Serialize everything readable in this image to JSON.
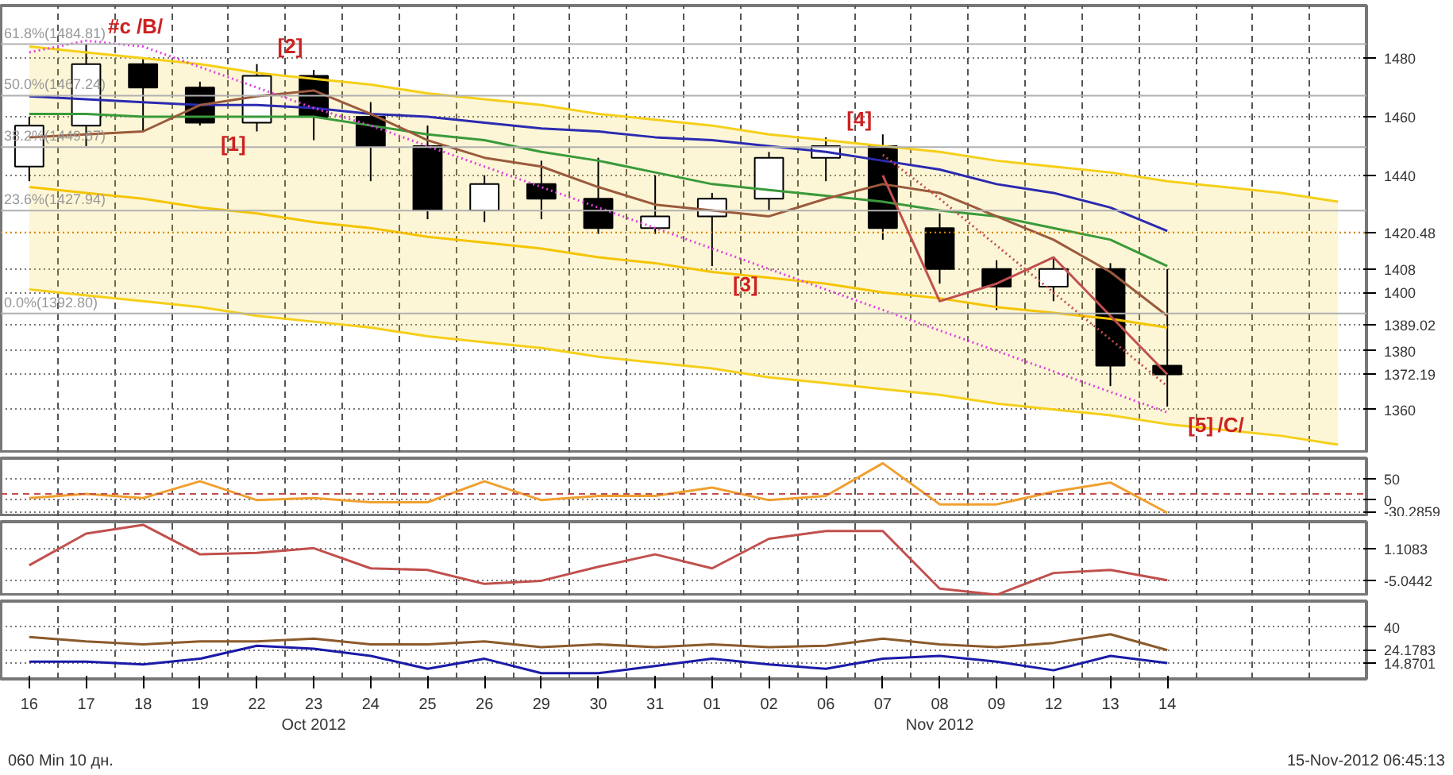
{
  "chart_data": [
    {
      "type": "candlestick",
      "color": "#000000",
      "grid": true,
      "tick_labels": "y",
      "ylim": [
        1345,
        1498
      ],
      "yticks": [
        1360,
        1372.19,
        1380,
        1389.02,
        1400,
        1408,
        1420.48,
        1440,
        1460,
        1480
      ],
      "categories": [
        "16",
        "17",
        "18",
        "19",
        "22",
        "23",
        "24",
        "25",
        "26",
        "29",
        "30",
        "31",
        "01",
        "02",
        "06",
        "07",
        "08",
        "09",
        "12",
        "13",
        "14",
        null,
        null,
        null
      ],
      "ohlc": [
        [
          1443,
          1460,
          1438,
          1457
        ],
        [
          1457,
          1484.81,
          1450,
          1478
        ],
        [
          1478,
          1480,
          1455,
          1470
        ],
        [
          1470,
          1472,
          1457,
          1458
        ],
        [
          1458,
          1478,
          1455,
          1474
        ],
        [
          1474,
          1476,
          1452,
          1460
        ],
        [
          1460,
          1465,
          1438,
          1450
        ],
        [
          1450,
          1457,
          1425,
          1428
        ],
        [
          1428,
          1440,
          1424,
          1437
        ],
        [
          1437,
          1445,
          1425,
          1432
        ],
        [
          1432,
          1446,
          1420,
          1422
        ],
        [
          1422,
          1440,
          1420,
          1426
        ],
        [
          1426,
          1434,
          1409,
          1432
        ],
        [
          1432,
          1448,
          1428,
          1446
        ],
        [
          1446,
          1453,
          1438,
          1450
        ],
        [
          1450,
          1454,
          1418,
          1422
        ],
        [
          1422,
          1427,
          1403,
          1408
        ],
        [
          1408,
          1411,
          1394,
          1402
        ],
        [
          1402,
          1412,
          1397,
          1408
        ],
        [
          1408,
          1410,
          1368,
          1375
        ],
        [
          1375,
          1408,
          1361,
          1372
        ],
        null,
        null,
        null
      ],
      "series": [
        {
          "type": "line",
          "color": "#f5cf1a",
          "values": [
            1484,
            1482,
            1480,
            1478,
            1475,
            1473,
            1471,
            1468,
            1466,
            1464,
            1461,
            1459,
            1457,
            1454,
            1452,
            1450,
            1448,
            1445,
            1443,
            1441,
            1438,
            1436,
            1434,
            1431
          ],
          "lower": [
            1401,
            1399,
            1397,
            1395,
            1392,
            1390,
            1388,
            1385,
            1383,
            1381,
            1378,
            1376,
            1374,
            1371,
            1369,
            1367,
            1365,
            1362,
            1360,
            1358,
            1355,
            1353,
            1351,
            1348
          ],
          "upper": [
            1484,
            1482,
            1480,
            1478,
            1475,
            1473,
            1471,
            1468,
            1466,
            1464,
            1461,
            1459,
            1457,
            1454,
            1452,
            1450,
            1448,
            1445,
            1443,
            1441,
            1438,
            1436,
            1434,
            1431
          ]
        },
        {
          "type": "line",
          "color": "#f5cf1a",
          "values": [
            1401,
            1399,
            1397,
            1395,
            1392,
            1390,
            1388,
            1385,
            1383,
            1381,
            1378,
            1376,
            1374,
            1371,
            1369,
            1367,
            1365,
            1362,
            1360,
            1358,
            1355,
            1353,
            1351,
            1348
          ]
        },
        {
          "type": "line",
          "color": "#f5c400",
          "values": [
            1436,
            1434,
            1432,
            1429,
            1427,
            1424,
            1422,
            1419,
            1417,
            1415,
            1412,
            1410,
            1407,
            1405,
            1403,
            1400,
            1398,
            1395,
            1393,
            1391,
            1388,
            null,
            null,
            null
          ]
        },
        {
          "type": "line",
          "color": "#2b2bb0",
          "values": [
            1467,
            1466,
            1465,
            1464,
            1464,
            1463,
            1461,
            1460,
            1458,
            1456,
            1455,
            1453,
            1452,
            1450,
            1448,
            1445,
            1442,
            1437,
            1434,
            1429,
            1421,
            null,
            null,
            null
          ]
        },
        {
          "type": "line",
          "color": "#3a9a3a",
          "values": [
            1461,
            1461,
            1460,
            1460,
            1460,
            1460,
            1457,
            1454,
            1452,
            1448,
            1445,
            1441,
            1437,
            1435,
            1433,
            1431,
            1428,
            1426,
            1422,
            1418,
            1409,
            null,
            null,
            null
          ]
        },
        {
          "type": "line",
          "color": "#9b5a3c",
          "values": [
            1453,
            1454,
            1455,
            1464,
            1467,
            1469,
            1461,
            1452,
            1446,
            1443,
            1436,
            1430,
            1428,
            1426,
            1432,
            1437,
            1434,
            1426,
            1418,
            1407,
            1392,
            null,
            null,
            null
          ]
        },
        {
          "type": "line",
          "color": "#e040e0",
          "line_style": "dotted",
          "values": [
            1482,
            1486,
            1484,
            1477,
            1470,
            1463,
            1457,
            1450,
            1443,
            1436,
            1429,
            1422,
            1415,
            1408,
            1401,
            1394,
            1387,
            1380,
            1373,
            1366,
            1359,
            null,
            null,
            null
          ]
        },
        {
          "type": "line",
          "color": "#c0504d",
          "line_style": "dotted",
          "values": [
            null,
            null,
            null,
            null,
            null,
            null,
            null,
            null,
            null,
            null,
            null,
            null,
            null,
            null,
            null,
            1447,
            1432,
            1416,
            1400,
            1384,
            1368,
            null,
            null,
            null
          ]
        },
        {
          "type": "line",
          "color": "#c0504d",
          "values": [
            null,
            null,
            null,
            null,
            null,
            null,
            null,
            null,
            null,
            null,
            null,
            null,
            null,
            null,
            null,
            1440,
            1397,
            1403,
            1412,
            1392,
            1372,
            null,
            null,
            null
          ]
        }
      ],
      "ref_lines": [
        {
          "axis": "y",
          "value": 1484.81,
          "label": "61.8%(1484.81)",
          "color": "#b0b0b0"
        },
        {
          "axis": "y",
          "value": 1467.24,
          "label": "50.0%(1467.24)",
          "color": "#b0b0b0"
        },
        {
          "axis": "y",
          "value": 1449.67,
          "label": "38.2%(1449.67)",
          "color": "#b0b0b0"
        },
        {
          "axis": "y",
          "value": 1427.94,
          "label": "23.6%(1427.94)",
          "color": "#b0b0b0"
        },
        {
          "axis": "y",
          "value": 1392.8,
          "label": "0.0%(1392.80)",
          "color": "#b0b0b0"
        },
        {
          "axis": "y",
          "value": 1420.48,
          "label": null,
          "color": "#e08a00",
          "line_style": "dotted"
        }
      ],
      "annotations": [
        {
          "text": "#c",
          "x": "17",
          "y": 1484.81
        },
        {
          "text": "/B/",
          "x": "17",
          "y": 1484.81
        },
        {
          "text": "[1]",
          "x": "19",
          "y": 1457
        },
        {
          "text": "[2]",
          "x": "22",
          "y": 1478
        },
        {
          "text": "[3]",
          "x": "01",
          "y": 1409
        },
        {
          "text": "[4]",
          "x": "06",
          "y": 1453
        },
        {
          "text": "[5]",
          "x": "14",
          "y": 1361
        },
        {
          "text": "/C/",
          "x": "14",
          "y": 1361
        }
      ]
    },
    {
      "type": "line",
      "grid": true,
      "tick_labels": "y",
      "ylim": [
        -40,
        100
      ],
      "yticks": [
        -30.2859,
        0,
        50
      ],
      "categories": [
        "16",
        "17",
        "18",
        "19",
        "22",
        "23",
        "24",
        "25",
        "26",
        "29",
        "30",
        "31",
        "01",
        "02",
        "06",
        "07",
        "08",
        "09",
        "12",
        "13",
        "14",
        null,
        null,
        null
      ],
      "series": [
        {
          "color": "#f0a030",
          "values": [
            5,
            15,
            5,
            45,
            0,
            5,
            -5,
            -5,
            45,
            0,
            10,
            10,
            30,
            0,
            10,
            88,
            -10,
            -10,
            20,
            42,
            -30,
            null,
            null,
            null
          ]
        }
      ],
      "ref_lines": [
        {
          "axis": "y",
          "value": 15,
          "label": null,
          "color": "#c0504d",
          "line_style": "dashed"
        }
      ]
    },
    {
      "type": "line",
      "grid": true,
      "tick_labels": "y",
      "ylim": [
        -8.1,
        6.3
      ],
      "yticks": [
        -5.0442,
        1.1083
      ],
      "categories": [
        "16",
        "17",
        "18",
        "19",
        "22",
        "23",
        "24",
        "25",
        "26",
        "29",
        "30",
        "31",
        "01",
        "02",
        "06",
        "07",
        "08",
        "09",
        "12",
        "13",
        "14",
        null,
        null,
        null
      ],
      "series": [
        {
          "color": "#c0504d",
          "values": [
            -2.1,
            4,
            5.7,
            0,
            0.3,
            1.2,
            -2.7,
            -3,
            -5.7,
            -5.1,
            -2.4,
            0,
            -2.7,
            3,
            4.5,
            4.5,
            -6.6,
            -7.8,
            -3.6,
            -3,
            -5,
            null,
            null,
            null
          ]
        }
      ]
    },
    {
      "type": "line",
      "grid": true,
      "ylim": [
        4,
        58
      ],
      "yticks": [
        14.8701,
        24.1783,
        40
      ],
      "categories": [
        "16",
        "17",
        "18",
        "19",
        "22",
        "23\nOct 2012",
        "24",
        "25",
        "26",
        "29",
        "30",
        "31",
        "01",
        "02",
        "06",
        "07",
        "08\nNov 2012",
        "09",
        "12",
        "13",
        "14",
        null,
        null,
        null
      ],
      "series": [
        {
          "color": "#1a1aa8",
          "values": [
            16,
            16,
            14,
            18,
            27,
            25,
            20,
            11,
            18,
            8,
            8,
            13,
            18,
            14,
            11,
            18,
            20,
            16,
            10,
            20,
            15,
            null,
            null,
            null
          ]
        },
        {
          "color": "#8b5a2b",
          "values": [
            33,
            30,
            28,
            30,
            30,
            32,
            28,
            28,
            30,
            26,
            28,
            26,
            28,
            26,
            27,
            32,
            28,
            26,
            29,
            35,
            24,
            null,
            null,
            null
          ]
        }
      ],
      "annotations": [
        "060 Min 10 дн.",
        "15-Nov-2012 06:45:13"
      ]
    }
  ]
}
